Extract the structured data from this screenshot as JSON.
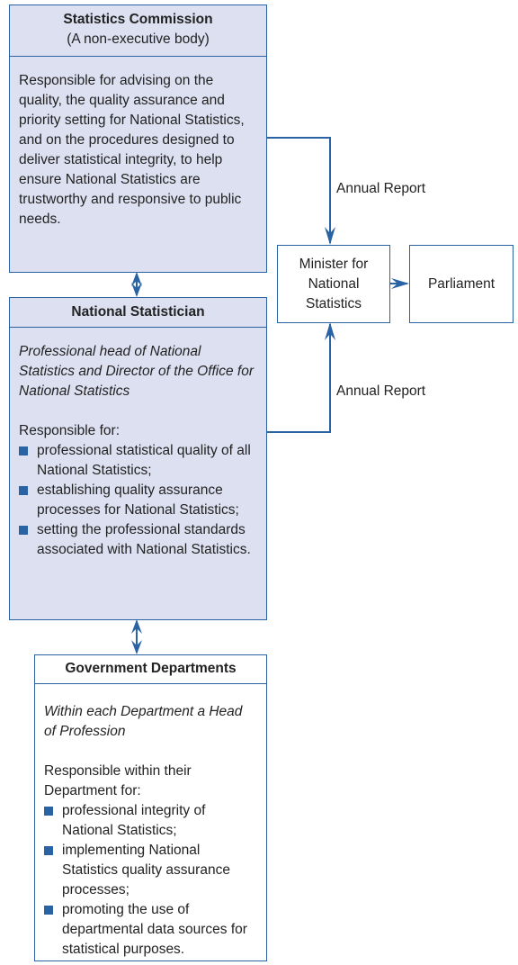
{
  "statistics_commission": {
    "title": "Statistics Commission",
    "subtitle": "(A non-executive body)",
    "description": "Responsible for advising on the quality, the quality assurance and priority setting for National Statistics, and on the procedures designed to deliver statistical integrity, to help ensure National Statistics are trustworthy and responsive to public needs."
  },
  "national_statistician": {
    "title": "National Statistician",
    "role": "Professional head of National Statistics and Director of the Office for National Statistics",
    "intro": "Responsible for:",
    "items": [
      "professional statistical quality of all National Statistics;",
      "establishing quality assurance processes for National Statistics;",
      "setting the professional standards associated with National Statistics."
    ]
  },
  "government_departments": {
    "title": "Government Departments",
    "role": "Within each Department a Head of Profession",
    "intro": "Responsible within their Department for:",
    "items": [
      "professional integrity of National Statistics;",
      "implementing National Statistics quality assurance processes;",
      "promoting the use of departmental data sources for statistical purposes."
    ]
  },
  "minister": {
    "label": "Minister for National Statistics"
  },
  "parliament": {
    "label": "Parliament"
  },
  "annual_report_labels": [
    "Annual Report",
    "Annual Report"
  ]
}
